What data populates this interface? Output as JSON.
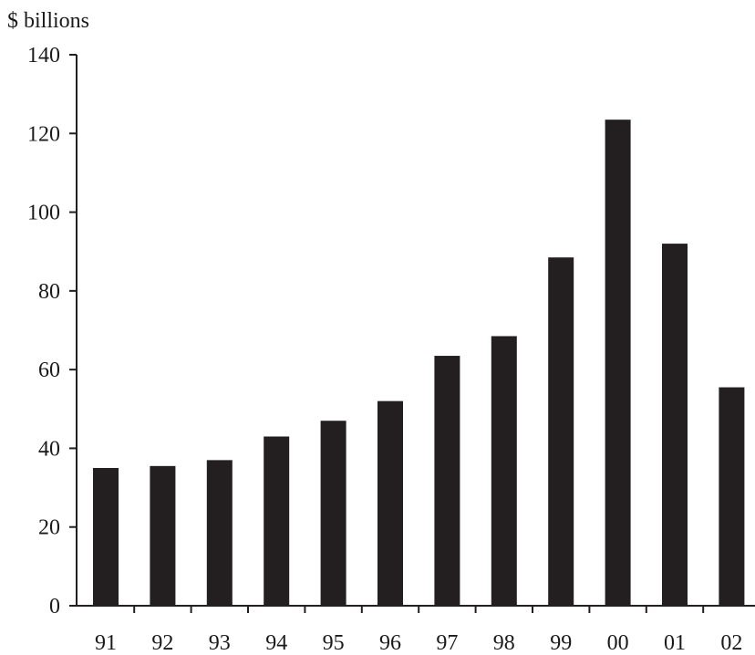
{
  "chart_data": {
    "type": "bar",
    "unit_label": "$ billions",
    "categories": [
      "91",
      "92",
      "93",
      "94",
      "95",
      "96",
      "97",
      "98",
      "99",
      "00",
      "01",
      "02"
    ],
    "values": [
      35,
      35.5,
      37,
      43,
      47,
      52,
      63.5,
      68.5,
      88.5,
      123.5,
      92,
      55.5
    ],
    "ylim": [
      0,
      140
    ],
    "yticks": [
      "0",
      "20",
      "40",
      "60",
      "80",
      "100",
      "120",
      "140"
    ],
    "grid": false,
    "bar_color": "#231f20",
    "axis_color": "#231f20"
  }
}
